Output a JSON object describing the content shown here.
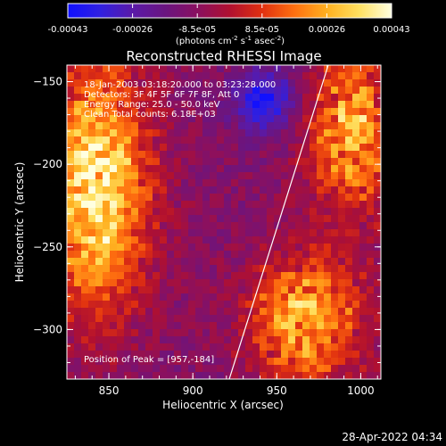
{
  "colorbar": {
    "ticks": [
      "-0.00043",
      "-0.00026",
      "-8.5e-05",
      "8.5e-05",
      "0.00026",
      "0.00043"
    ],
    "unit_prefix": "(photons cm",
    "unit_exp1": "-2",
    "unit_mid": " s",
    "unit_exp2": "-1",
    "unit_mid2": " asec",
    "unit_exp3": "-2",
    "unit_suffix": ")",
    "colors": [
      "#1010ff",
      "#3020e0",
      "#5a1aa8",
      "#6a1580",
      "#8a1060",
      "#b01030",
      "#e03010",
      "#ff7010",
      "#ffb020",
      "#ffe060",
      "#ffffe0"
    ]
  },
  "title": "Reconstructed RHESSI Image",
  "info": {
    "line1": "18-Jan-2003 03:18:20.000 to 03:23:28.000",
    "line2": "Detectors: 3F 4F 5F 6F 7F 8F, Att 0",
    "line3": "Energy Range: 25.0 - 50.0 keV",
    "line4": "Clean    Total counts: 6.18E+03"
  },
  "peak": "Position of Peak = [957,-184]",
  "axes": {
    "xlabel": "Heliocentric X (arcsec)",
    "ylabel": "Heliocentric Y (arcsec)",
    "xticks": [
      {
        "label": "850",
        "value": 850
      },
      {
        "label": "900",
        "value": 900
      },
      {
        "label": "950",
        "value": 950
      },
      {
        "label": "1000",
        "value": 1000
      }
    ],
    "yticks": [
      {
        "label": "−150",
        "value": -150
      },
      {
        "label": "−200",
        "value": -200
      },
      {
        "label": "−250",
        "value": -250
      },
      {
        "label": "−300",
        "value": -300
      }
    ],
    "xlim": [
      825,
      1012
    ],
    "ylim": [
      -330,
      -140
    ]
  },
  "timestamp": "28-Apr-2022 04:34"
}
